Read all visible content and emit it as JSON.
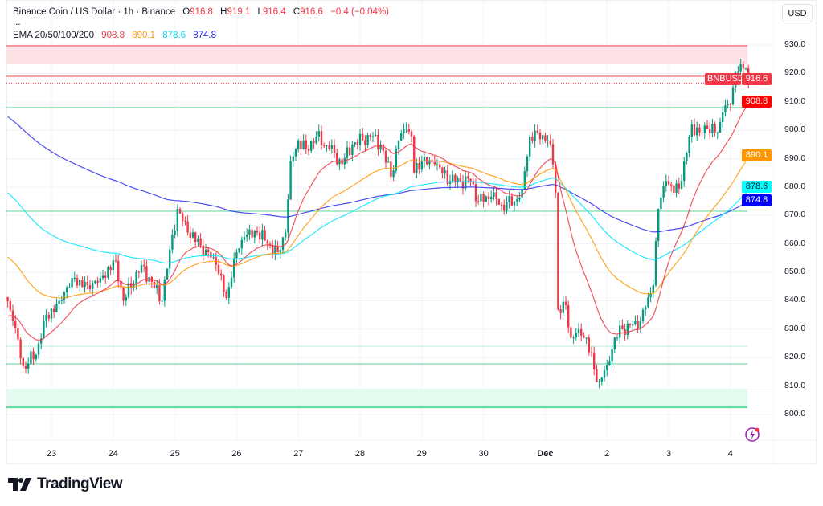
{
  "header": {
    "symbol_title": "Binance Coin / US Dollar · 1h · Binance",
    "open_label": "O",
    "open": "916.8",
    "high_label": "H",
    "high": "919.1",
    "low_label": "L",
    "low": "916.4",
    "close_label": "C",
    "close": "916.6",
    "change": "−0.4 (−0.04%)",
    "more": "...",
    "ema_label": "EMA 20/50/100/200",
    "ema_values": [
      "908.8",
      "890.1",
      "878.6",
      "874.8"
    ]
  },
  "currency_button": "USD",
  "symbol_tag": "BNBUSD",
  "last_price_tag": "916.6",
  "brand": "TradingView",
  "colors": {
    "up": "#089981",
    "down": "#f23645",
    "ema20": "#f23645",
    "ema50": "#ff9800",
    "ema100": "#00e5ff",
    "ema200": "#2a2ef0",
    "support": "#7ee0b0",
    "resistance": "#f7787f"
  },
  "chart_data": {
    "type": "candlestick",
    "title": "Binance Coin / US Dollar · 1h · Binance",
    "ylim": [
      792,
      932
    ],
    "y_ticks": [
      "930.0",
      "920.0",
      "910.0",
      "900.0",
      "890.0",
      "880.0",
      "870.0",
      "860.0",
      "850.0",
      "840.0",
      "830.0",
      "820.0",
      "810.0",
      "800.0"
    ],
    "y_tick_values": [
      930,
      920,
      910,
      900,
      890,
      880,
      870,
      860,
      850,
      840,
      830,
      820,
      810,
      800
    ],
    "x_ticks": [
      {
        "label": "23",
        "bar": 17
      },
      {
        "label": "24",
        "bar": 41
      },
      {
        "label": "25",
        "bar": 65
      },
      {
        "label": "26",
        "bar": 89
      },
      {
        "label": "27",
        "bar": 113
      },
      {
        "label": "28",
        "bar": 137
      },
      {
        "label": "29",
        "bar": 161
      },
      {
        "label": "30",
        "bar": 185
      },
      {
        "label": "Dec",
        "bar": 209
      },
      {
        "label": "2",
        "bar": 233
      },
      {
        "label": "3",
        "bar": 257
      },
      {
        "label": "4",
        "bar": 281
      }
    ],
    "bar_count": 289,
    "close_keypoints": [
      [
        0,
        839.8
      ],
      [
        2,
        832.8
      ],
      [
        6,
        817
      ],
      [
        11,
        821
      ],
      [
        14,
        832.8
      ],
      [
        20,
        840
      ],
      [
        25,
        848
      ],
      [
        31,
        845.5
      ],
      [
        36,
        848
      ],
      [
        42,
        854
      ],
      [
        45,
        840
      ],
      [
        52,
        852.6
      ],
      [
        60,
        840
      ],
      [
        63,
        858
      ],
      [
        66,
        872.3
      ],
      [
        70,
        864
      ],
      [
        77,
        858
      ],
      [
        81,
        852.6
      ],
      [
        85,
        841
      ],
      [
        88,
        855
      ],
      [
        92,
        862.4
      ],
      [
        97,
        864
      ],
      [
        102,
        859.6
      ],
      [
        105,
        857
      ],
      [
        108,
        864
      ],
      [
        110,
        889
      ],
      [
        113,
        896.4
      ],
      [
        116,
        893.5
      ],
      [
        120,
        897.8
      ],
      [
        125,
        893.5
      ],
      [
        130,
        888
      ],
      [
        134,
        895
      ],
      [
        141,
        897.8
      ],
      [
        145,
        895
      ],
      [
        149,
        883.6
      ],
      [
        152,
        896.4
      ],
      [
        155,
        900.6
      ],
      [
        157,
        897.8
      ],
      [
        158,
        885
      ],
      [
        161,
        889
      ],
      [
        166,
        888
      ],
      [
        172,
        882.2
      ],
      [
        180,
        882.2
      ],
      [
        183,
        875
      ],
      [
        188,
        876.6
      ],
      [
        192,
        873.8
      ],
      [
        197,
        875
      ],
      [
        200,
        879.4
      ],
      [
        203,
        897.8
      ],
      [
        206,
        899.2
      ],
      [
        210,
        896.4
      ],
      [
        212,
        888
      ],
      [
        213,
        878
      ],
      [
        214,
        837
      ],
      [
        217,
        838.4
      ],
      [
        219,
        827
      ],
      [
        222,
        830
      ],
      [
        225,
        827
      ],
      [
        228,
        815.8
      ],
      [
        230,
        811.6
      ],
      [
        233,
        817.2
      ],
      [
        236,
        827
      ],
      [
        239,
        830
      ],
      [
        242,
        831.4
      ],
      [
        245,
        830.5
      ],
      [
        249,
        841.2
      ],
      [
        251,
        845.5
      ],
      [
        252,
        861
      ],
      [
        253,
        872.3
      ],
      [
        256,
        882.2
      ],
      [
        259,
        878
      ],
      [
        262,
        882.2
      ],
      [
        264,
        892
      ],
      [
        266,
        902
      ],
      [
        269,
        899.2
      ],
      [
        272,
        900.6
      ],
      [
        276,
        899.2
      ],
      [
        278,
        906.3
      ],
      [
        281,
        909
      ],
      [
        283,
        919
      ],
      [
        285,
        923.2
      ],
      [
        287,
        921.8
      ],
      [
        288,
        916.6
      ]
    ],
    "ema_seeds": {
      "ema20": 834,
      "ema50": 856,
      "ema100": 878.8,
      "ema200": 905.4
    },
    "ema_last": {
      "ema20": 908.8,
      "ema50": 890.1,
      "ema100": 878.6,
      "ema200": 874.8
    },
    "resistance_zone": [
      923.2,
      929.7
    ],
    "resistance_line": 919,
    "support_lines": [
      908,
      871.5,
      824,
      817.8
    ],
    "support_zone": [
      802.5,
      809
    ],
    "last_price": 916.6
  }
}
